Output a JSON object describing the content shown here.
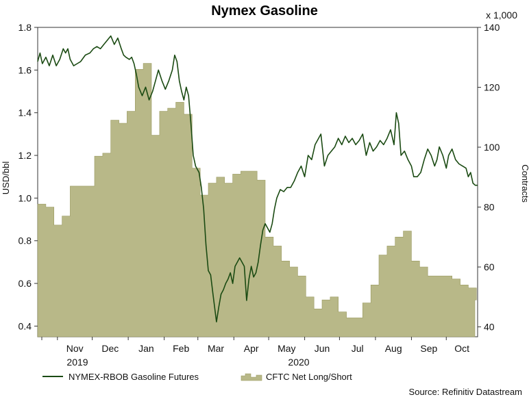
{
  "colors": {
    "line": "#1a4a12",
    "area_fill": "#b8b888",
    "area_stroke": "#9a9a60",
    "axis": "#333333"
  },
  "chart_data": {
    "type": "line",
    "title": "Nymex Gasoline",
    "ylabel_left": "USD/bbl",
    "ylabel_right": "Contracts",
    "right_multiplier": "x 1,000",
    "source": "Source: Refinitiv Datastream",
    "ylim_left": [
      0.35,
      1.8
    ],
    "ylim_right": [
      36.7,
      140
    ],
    "yticks_left": [
      "0.4",
      "0.6",
      "0.8",
      "1.0",
      "1.2",
      "1.4",
      "1.6",
      "1.8"
    ],
    "yticks_right": [
      "40",
      "60",
      "80",
      "100",
      "120",
      "140"
    ],
    "x_month_labels": [
      "Nov",
      "Dec",
      "Jan",
      "Feb",
      "Mar",
      "Apr",
      "May",
      "Jun",
      "Jul",
      "Aug",
      "Sep",
      "Oct"
    ],
    "x_year_labels": [
      "2019",
      "2020"
    ],
    "legend": [
      "NYMEX-RBOB Gasoline Futures",
      "CFTC Net Long/Short"
    ],
    "x_start": "2019-10-15",
    "x_end": "2020-10-28",
    "series": [
      {
        "name": "NYMEX-RBOB Gasoline Futures",
        "type": "line",
        "axis": "left",
        "points": [
          [
            "2019-10-15",
            1.64
          ],
          [
            "2019-10-17",
            1.68
          ],
          [
            "2019-10-19",
            1.63
          ],
          [
            "2019-10-22",
            1.66
          ],
          [
            "2019-10-25",
            1.62
          ],
          [
            "2019-10-28",
            1.67
          ],
          [
            "2019-10-31",
            1.62
          ],
          [
            "2019-11-03",
            1.65
          ],
          [
            "2019-11-06",
            1.7
          ],
          [
            "2019-11-08",
            1.68
          ],
          [
            "2019-11-10",
            1.7
          ],
          [
            "2019-11-12",
            1.65
          ],
          [
            "2019-11-15",
            1.62
          ],
          [
            "2019-11-18",
            1.63
          ],
          [
            "2019-11-21",
            1.64
          ],
          [
            "2019-11-25",
            1.67
          ],
          [
            "2019-11-29",
            1.68
          ],
          [
            "2019-12-02",
            1.7
          ],
          [
            "2019-12-05",
            1.71
          ],
          [
            "2019-12-08",
            1.7
          ],
          [
            "2019-12-11",
            1.72
          ],
          [
            "2019-12-14",
            1.74
          ],
          [
            "2019-12-17",
            1.76
          ],
          [
            "2019-12-20",
            1.72
          ],
          [
            "2019-12-23",
            1.75
          ],
          [
            "2019-12-26",
            1.7
          ],
          [
            "2019-12-28",
            1.67
          ],
          [
            "2019-12-30",
            1.66
          ],
          [
            "2020-01-02",
            1.65
          ],
          [
            "2020-01-04",
            1.66
          ],
          [
            "2020-01-06",
            1.63
          ],
          [
            "2020-01-08",
            1.58
          ],
          [
            "2020-01-10",
            1.52
          ],
          [
            "2020-01-13",
            1.48
          ],
          [
            "2020-01-16",
            1.52
          ],
          [
            "2020-01-19",
            1.46
          ],
          [
            "2020-01-22",
            1.5
          ],
          [
            "2020-01-25",
            1.56
          ],
          [
            "2020-01-27",
            1.6
          ],
          [
            "2020-01-30",
            1.55
          ],
          [
            "2020-02-02",
            1.51
          ],
          [
            "2020-02-05",
            1.55
          ],
          [
            "2020-02-08",
            1.6
          ],
          [
            "2020-02-10",
            1.67
          ],
          [
            "2020-02-12",
            1.64
          ],
          [
            "2020-02-14",
            1.55
          ],
          [
            "2020-02-16",
            1.5
          ],
          [
            "2020-02-18",
            1.46
          ],
          [
            "2020-02-20",
            1.52
          ],
          [
            "2020-02-22",
            1.48
          ],
          [
            "2020-02-24",
            1.35
          ],
          [
            "2020-02-26",
            1.2
          ],
          [
            "2020-02-28",
            1.15
          ],
          [
            "2020-03-02",
            1.12
          ],
          [
            "2020-03-04",
            1.05
          ],
          [
            "2020-03-06",
            0.95
          ],
          [
            "2020-03-08",
            0.78
          ],
          [
            "2020-03-10",
            0.66
          ],
          [
            "2020-03-12",
            0.64
          ],
          [
            "2020-03-14",
            0.55
          ],
          [
            "2020-03-17",
            0.42
          ],
          [
            "2020-03-19",
            0.49
          ],
          [
            "2020-03-21",
            0.55
          ],
          [
            "2020-03-23",
            0.57
          ],
          [
            "2020-03-25",
            0.6
          ],
          [
            "2020-03-27",
            0.62
          ],
          [
            "2020-03-29",
            0.65
          ],
          [
            "2020-03-31",
            0.6
          ],
          [
            "2020-04-02",
            0.68
          ],
          [
            "2020-04-04",
            0.7
          ],
          [
            "2020-04-06",
            0.72
          ],
          [
            "2020-04-08",
            0.7
          ],
          [
            "2020-04-10",
            0.68
          ],
          [
            "2020-04-12",
            0.52
          ],
          [
            "2020-04-14",
            0.62
          ],
          [
            "2020-04-16",
            0.68
          ],
          [
            "2020-04-18",
            0.63
          ],
          [
            "2020-04-20",
            0.65
          ],
          [
            "2020-04-22",
            0.7
          ],
          [
            "2020-04-24",
            0.78
          ],
          [
            "2020-04-26",
            0.85
          ],
          [
            "2020-04-28",
            0.88
          ],
          [
            "2020-04-30",
            0.86
          ],
          [
            "2020-05-02",
            0.84
          ],
          [
            "2020-05-04",
            0.88
          ],
          [
            "2020-05-06",
            0.95
          ],
          [
            "2020-05-08",
            1.0
          ],
          [
            "2020-05-11",
            1.04
          ],
          [
            "2020-05-14",
            1.03
          ],
          [
            "2020-05-17",
            1.05
          ],
          [
            "2020-05-20",
            1.05
          ],
          [
            "2020-05-23",
            1.08
          ],
          [
            "2020-05-26",
            1.12
          ],
          [
            "2020-05-29",
            1.15
          ],
          [
            "2020-06-01",
            1.1
          ],
          [
            "2020-06-04",
            1.2
          ],
          [
            "2020-06-07",
            1.18
          ],
          [
            "2020-06-10",
            1.25
          ],
          [
            "2020-06-13",
            1.28
          ],
          [
            "2020-06-15",
            1.3
          ],
          [
            "2020-06-18",
            1.15
          ],
          [
            "2020-06-21",
            1.2
          ],
          [
            "2020-06-24",
            1.22
          ],
          [
            "2020-06-27",
            1.24
          ],
          [
            "2020-06-30",
            1.28
          ],
          [
            "2020-07-03",
            1.25
          ],
          [
            "2020-07-06",
            1.29
          ],
          [
            "2020-07-09",
            1.26
          ],
          [
            "2020-07-12",
            1.28
          ],
          [
            "2020-07-15",
            1.25
          ],
          [
            "2020-07-18",
            1.27
          ],
          [
            "2020-07-21",
            1.3
          ],
          [
            "2020-07-24",
            1.2
          ],
          [
            "2020-07-27",
            1.26
          ],
          [
            "2020-07-30",
            1.22
          ],
          [
            "2020-08-02",
            1.24
          ],
          [
            "2020-08-05",
            1.27
          ],
          [
            "2020-08-08",
            1.25
          ],
          [
            "2020-08-11",
            1.28
          ],
          [
            "2020-08-14",
            1.32
          ],
          [
            "2020-08-17",
            1.25
          ],
          [
            "2020-08-19",
            1.4
          ],
          [
            "2020-08-21",
            1.35
          ],
          [
            "2020-08-23",
            1.2
          ],
          [
            "2020-08-26",
            1.22
          ],
          [
            "2020-08-29",
            1.18
          ],
          [
            "2020-09-01",
            1.15
          ],
          [
            "2020-09-03",
            1.1
          ],
          [
            "2020-09-06",
            1.1
          ],
          [
            "2020-09-09",
            1.12
          ],
          [
            "2020-09-12",
            1.18
          ],
          [
            "2020-09-15",
            1.23
          ],
          [
            "2020-09-18",
            1.2
          ],
          [
            "2020-09-21",
            1.15
          ],
          [
            "2020-09-23",
            1.18
          ],
          [
            "2020-09-25",
            1.24
          ],
          [
            "2020-09-28",
            1.2
          ],
          [
            "2020-10-01",
            1.14
          ],
          [
            "2020-10-03",
            1.2
          ],
          [
            "2020-10-06",
            1.23
          ],
          [
            "2020-10-09",
            1.18
          ],
          [
            "2020-10-12",
            1.16
          ],
          [
            "2020-10-15",
            1.15
          ],
          [
            "2020-10-18",
            1.14
          ],
          [
            "2020-10-20",
            1.1
          ],
          [
            "2020-10-22",
            1.12
          ],
          [
            "2020-10-24",
            1.07
          ],
          [
            "2020-10-26",
            1.06
          ],
          [
            "2020-10-28",
            1.06
          ]
        ]
      },
      {
        "name": "CFTC Net Long/Short",
        "type": "area",
        "axis": "right",
        "points": [
          [
            "2019-10-15",
            81
          ],
          [
            "2019-10-22",
            80
          ],
          [
            "2019-10-29",
            74
          ],
          [
            "2019-11-05",
            77
          ],
          [
            "2019-11-12",
            87
          ],
          [
            "2019-11-19",
            87
          ],
          [
            "2019-11-26",
            87
          ],
          [
            "2019-12-03",
            97
          ],
          [
            "2019-12-10",
            98
          ],
          [
            "2019-12-17",
            109
          ],
          [
            "2019-12-24",
            108
          ],
          [
            "2019-12-31",
            112
          ],
          [
            "2020-01-07",
            126
          ],
          [
            "2020-01-14",
            128
          ],
          [
            "2020-01-21",
            104
          ],
          [
            "2020-01-28",
            112
          ],
          [
            "2020-02-04",
            113
          ],
          [
            "2020-02-11",
            115
          ],
          [
            "2020-02-18",
            111
          ],
          [
            "2020-02-25",
            93
          ],
          [
            "2020-03-03",
            84
          ],
          [
            "2020-03-10",
            88
          ],
          [
            "2020-03-17",
            90
          ],
          [
            "2020-03-24",
            88
          ],
          [
            "2020-03-31",
            91
          ],
          [
            "2020-04-07",
            92
          ],
          [
            "2020-04-14",
            92
          ],
          [
            "2020-04-21",
            89
          ],
          [
            "2020-04-28",
            70
          ],
          [
            "2020-05-05",
            67
          ],
          [
            "2020-05-12",
            62
          ],
          [
            "2020-05-19",
            60
          ],
          [
            "2020-05-26",
            57
          ],
          [
            "2020-06-02",
            50
          ],
          [
            "2020-06-09",
            46
          ],
          [
            "2020-06-16",
            49
          ],
          [
            "2020-06-23",
            50
          ],
          [
            "2020-06-30",
            45
          ],
          [
            "2020-07-07",
            43
          ],
          [
            "2020-07-14",
            43
          ],
          [
            "2020-07-21",
            48
          ],
          [
            "2020-07-28",
            54
          ],
          [
            "2020-08-04",
            64
          ],
          [
            "2020-08-11",
            67
          ],
          [
            "2020-08-18",
            70
          ],
          [
            "2020-08-25",
            72
          ],
          [
            "2020-09-01",
            62
          ],
          [
            "2020-09-08",
            60
          ],
          [
            "2020-09-15",
            57
          ],
          [
            "2020-09-22",
            57
          ],
          [
            "2020-09-29",
            57
          ],
          [
            "2020-10-06",
            56
          ],
          [
            "2020-10-13",
            54
          ],
          [
            "2020-10-20",
            53
          ],
          [
            "2020-10-27",
            49
          ]
        ]
      }
    ]
  }
}
